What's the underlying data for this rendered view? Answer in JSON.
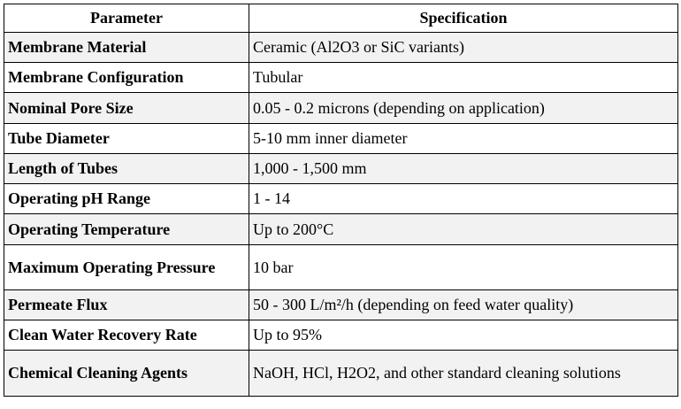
{
  "table": {
    "headers": [
      "Parameter",
      "Specification"
    ],
    "rows": [
      {
        "parameter": "Membrane Material",
        "specification": "Ceramic (Al2O3 or SiC variants)"
      },
      {
        "parameter": "Membrane Configuration",
        "specification": "Tubular"
      },
      {
        "parameter": "Nominal Pore Size",
        "specification": "0.05 - 0.2 microns (depending on application)"
      },
      {
        "parameter": "Tube Diameter",
        "specification": "5-10 mm inner diameter"
      },
      {
        "parameter": "Length of Tubes",
        "specification": "1,000 - 1,500 mm"
      },
      {
        "parameter": "Operating pH Range",
        "specification": "1 - 14"
      },
      {
        "parameter": "Operating Temperature",
        "specification": "Up to 200°C"
      },
      {
        "parameter": "Maximum Operating Pressure",
        "specification": "10 bar"
      },
      {
        "parameter": "Permeate Flux",
        "specification": "50 - 300 L/m²/h (depending on feed water quality)"
      },
      {
        "parameter": "Clean Water Recovery Rate",
        "specification": "Up to 95%"
      },
      {
        "parameter": "Chemical Cleaning Agents",
        "specification": "NaOH, HCl, H2O2, and other standard cleaning solutions"
      }
    ]
  }
}
